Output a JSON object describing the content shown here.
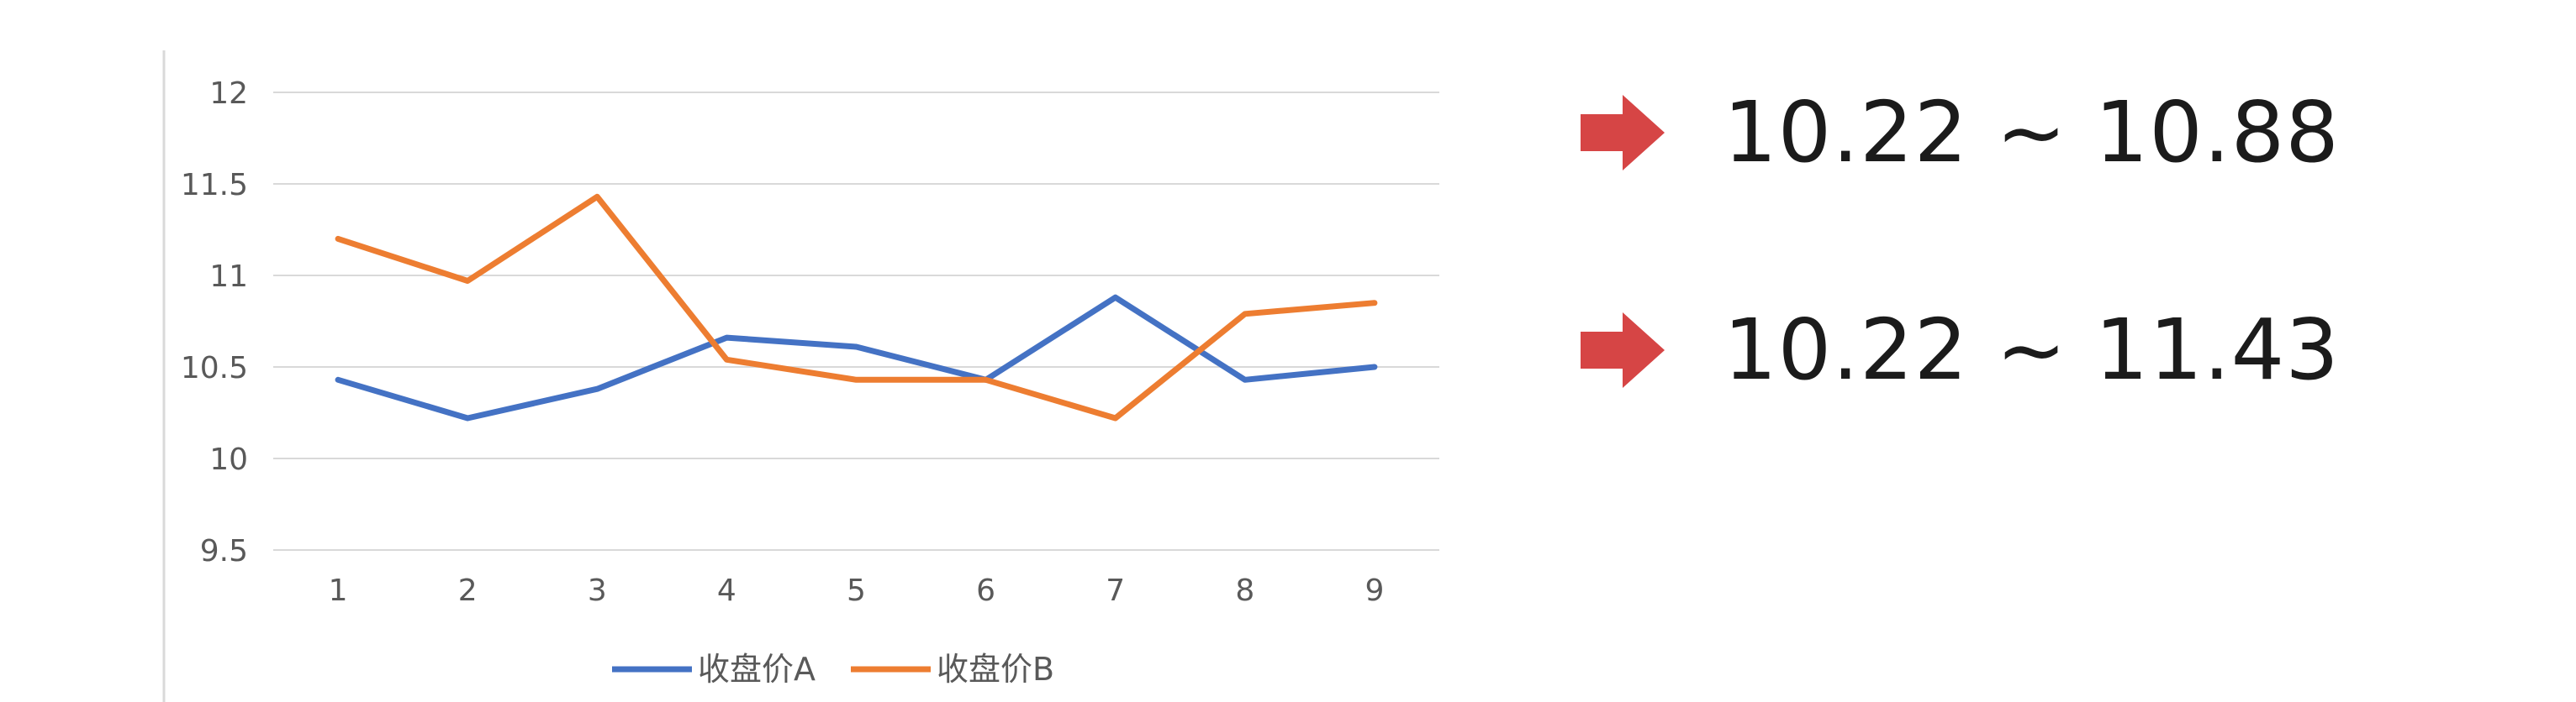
{
  "chart_data": {
    "type": "line",
    "x": [
      1,
      2,
      3,
      4,
      5,
      6,
      7,
      8,
      9
    ],
    "categories": [
      "1",
      "2",
      "3",
      "4",
      "5",
      "6",
      "7",
      "8",
      "9"
    ],
    "series": [
      {
        "name": "收盘价A",
        "color": "#4472C4",
        "values": [
          10.43,
          10.22,
          10.38,
          10.66,
          10.61,
          10.43,
          10.88,
          10.43,
          10.5
        ]
      },
      {
        "name": "收盘价B",
        "color": "#ED7D31",
        "values": [
          11.2,
          10.97,
          11.43,
          10.54,
          10.43,
          10.43,
          10.22,
          10.79,
          10.85
        ]
      }
    ],
    "yticks": [
      "9.5",
      "10",
      "10.5",
      "11",
      "11.5",
      "12"
    ],
    "ylim": [
      9.5,
      12
    ],
    "grid": true,
    "legend_position": "bottom",
    "title": "",
    "xlabel": "",
    "ylabel": ""
  },
  "ranges": [
    {
      "text": "10.22 ~ 10.88",
      "arrow_color": "#D64545"
    },
    {
      "text": "10.22 ~ 11.43",
      "arrow_color": "#D64545"
    }
  ]
}
